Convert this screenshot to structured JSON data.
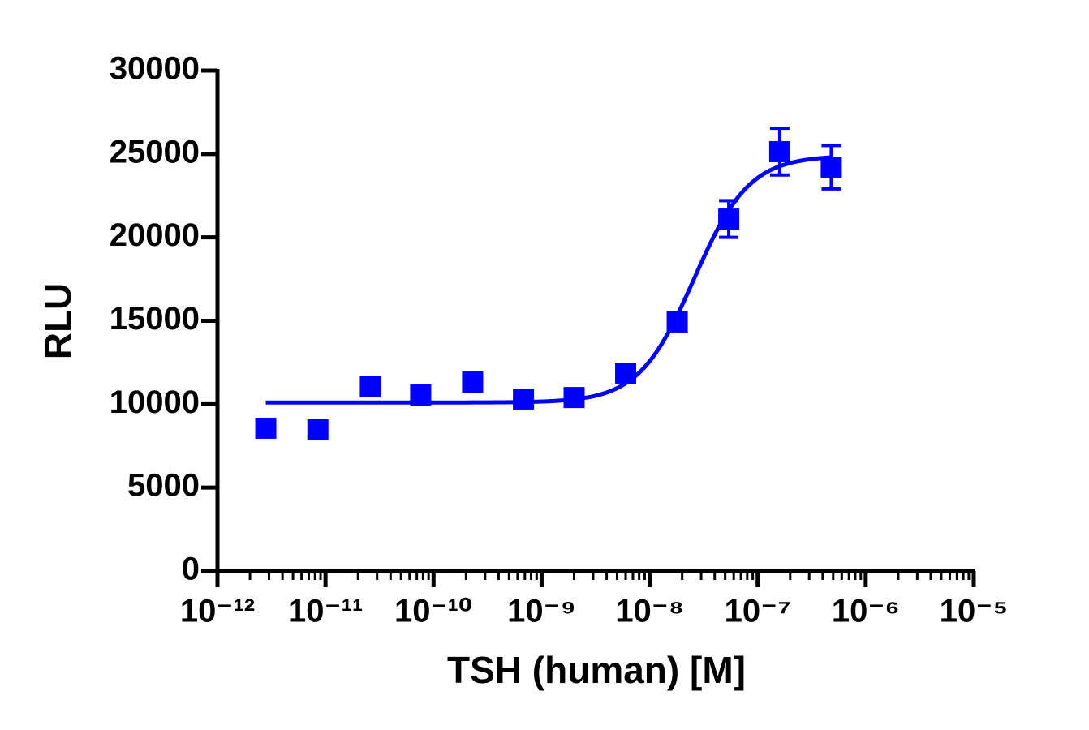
{
  "chart_data": {
    "type": "scatter",
    "x_label": "TSH (human) [M]",
    "y_label": "RLU",
    "x_scale": "log",
    "color": "#0000ff",
    "x": [
      2.8e-12,
      8.5e-12,
      2.6e-11,
      7.6e-11,
      2.3e-10,
      6.8e-10,
      2e-09,
      6e-09,
      1.8e-08,
      5.4e-08,
      1.6e-07,
      4.8e-07
    ],
    "values": [
      8560,
      8460,
      11040,
      10550,
      11330,
      10310,
      10400,
      11860,
      14930,
      21100,
      25140,
      24210
    ],
    "errors": [
      null,
      null,
      null,
      null,
      null,
      null,
      null,
      null,
      null,
      1100,
      1400,
      1300
    ],
    "fit": {
      "bottom": 10100,
      "top": 24900,
      "log_ec50": -7.59,
      "hill": 1.7
    },
    "xlim": [
      1e-12,
      1e-05
    ],
    "xticks": [
      {
        "value": 1e-12,
        "label": "10⁻¹²"
      },
      {
        "value": 1e-11,
        "label": "10⁻¹¹"
      },
      {
        "value": 1e-10,
        "label": "10⁻¹⁰"
      },
      {
        "value": 1e-09,
        "label": "10⁻⁹"
      },
      {
        "value": 1e-08,
        "label": "10⁻⁸"
      },
      {
        "value": 1e-07,
        "label": "10⁻⁷"
      },
      {
        "value": 1e-06,
        "label": "10⁻⁶"
      },
      {
        "value": 1e-05,
        "label": "10⁻⁵"
      }
    ],
    "ylim": [
      0,
      30000
    ],
    "yticks": [
      0,
      5000,
      10000,
      15000,
      20000,
      25000,
      30000
    ]
  }
}
